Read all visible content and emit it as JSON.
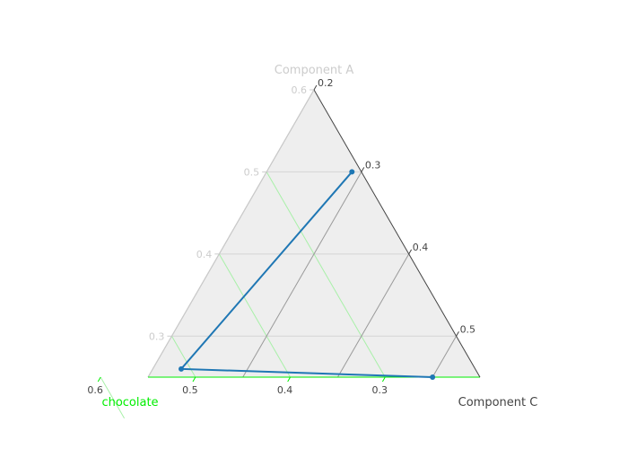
{
  "chart_data": {
    "type": "ternary-line",
    "title": "",
    "axes": {
      "a": {
        "title": "Component A",
        "ticks": [
          "0.3",
          "0.4",
          "0.5",
          "0.6"
        ],
        "tick_values": [
          0.3,
          0.4,
          0.5,
          0.6
        ],
        "min": 0.25,
        "color": "#cccccc"
      },
      "b": {
        "title": "chocolate",
        "ticks": [
          "0.6",
          "0.5",
          "0.4",
          "0.3"
        ],
        "tick_values": [
          0.6,
          0.5,
          0.4,
          0.3
        ],
        "min": 0.2,
        "color": "#00ee00"
      },
      "c": {
        "title": "Component C",
        "ticks": [
          "0.2",
          "0.3",
          "0.4",
          "0.5"
        ],
        "tick_values": [
          0.2,
          0.3,
          0.4,
          0.5
        ],
        "min": 0.2,
        "color": "#444444"
      }
    },
    "background_color": "#eeeeee",
    "grid": true,
    "series": [
      {
        "color": "#1f77b4",
        "points": [
          {
            "a": 0.5,
            "b": 0.21,
            "c": 0.29
          },
          {
            "a": 0.26,
            "b": 0.51,
            "c": 0.23
          },
          {
            "a": 0.25,
            "b": 0.25,
            "c": 0.5
          }
        ]
      }
    ]
  }
}
